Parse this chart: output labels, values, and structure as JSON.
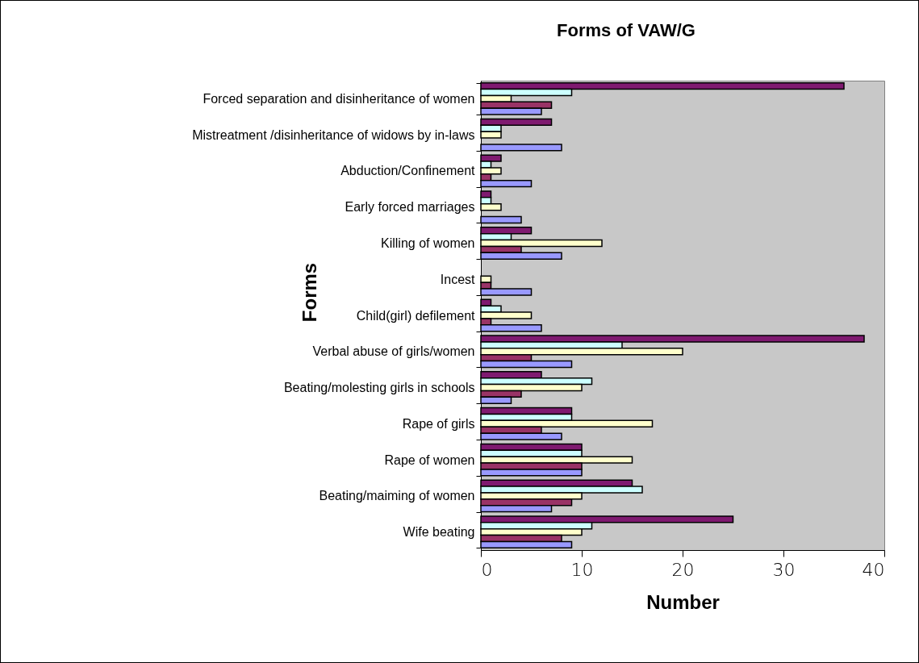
{
  "chart_data": {
    "type": "bar",
    "orientation": "horizontal",
    "title": "Forms of VAW/G",
    "xlabel": "Number",
    "ylabel": "Forms",
    "categories": [
      "Forced separation and disinheritance of women",
      "Mistreatment /disinheritance of widows by in-laws",
      "Abduction/Confinement",
      "Early forced marriages",
      "Killing of women",
      "Incest",
      "Child(girl) defilement",
      "Verbal abuse of girls/women",
      "Beating/molesting girls in schools",
      "Rape of girls",
      "Rape of women",
      "Beating/maiming of women",
      "Wife beating"
    ],
    "series": [
      {
        "color": "#7f1a70",
        "values": [
          36,
          7,
          2,
          1,
          5,
          0,
          1,
          38,
          6,
          9,
          10,
          15,
          25
        ]
      },
      {
        "color": "#ccffff",
        "values": [
          9,
          2,
          1,
          1,
          3,
          0,
          2,
          14,
          11,
          9,
          10,
          16,
          11
        ]
      },
      {
        "color": "#ffffcc",
        "values": [
          3,
          2,
          2,
          2,
          12,
          1,
          5,
          20,
          10,
          17,
          15,
          10,
          10
        ]
      },
      {
        "color": "#993366",
        "values": [
          7,
          0,
          1,
          0,
          4,
          1,
          1,
          5,
          4,
          6,
          10,
          9,
          8
        ]
      },
      {
        "color": "#9999ff",
        "values": [
          6,
          8,
          5,
          4,
          8,
          5,
          6,
          9,
          3,
          8,
          10,
          7,
          9
        ]
      }
    ],
    "xlim": [
      0,
      40
    ],
    "xticks": [
      0,
      10,
      20,
      30,
      40
    ],
    "grid": false,
    "legend": false
  }
}
